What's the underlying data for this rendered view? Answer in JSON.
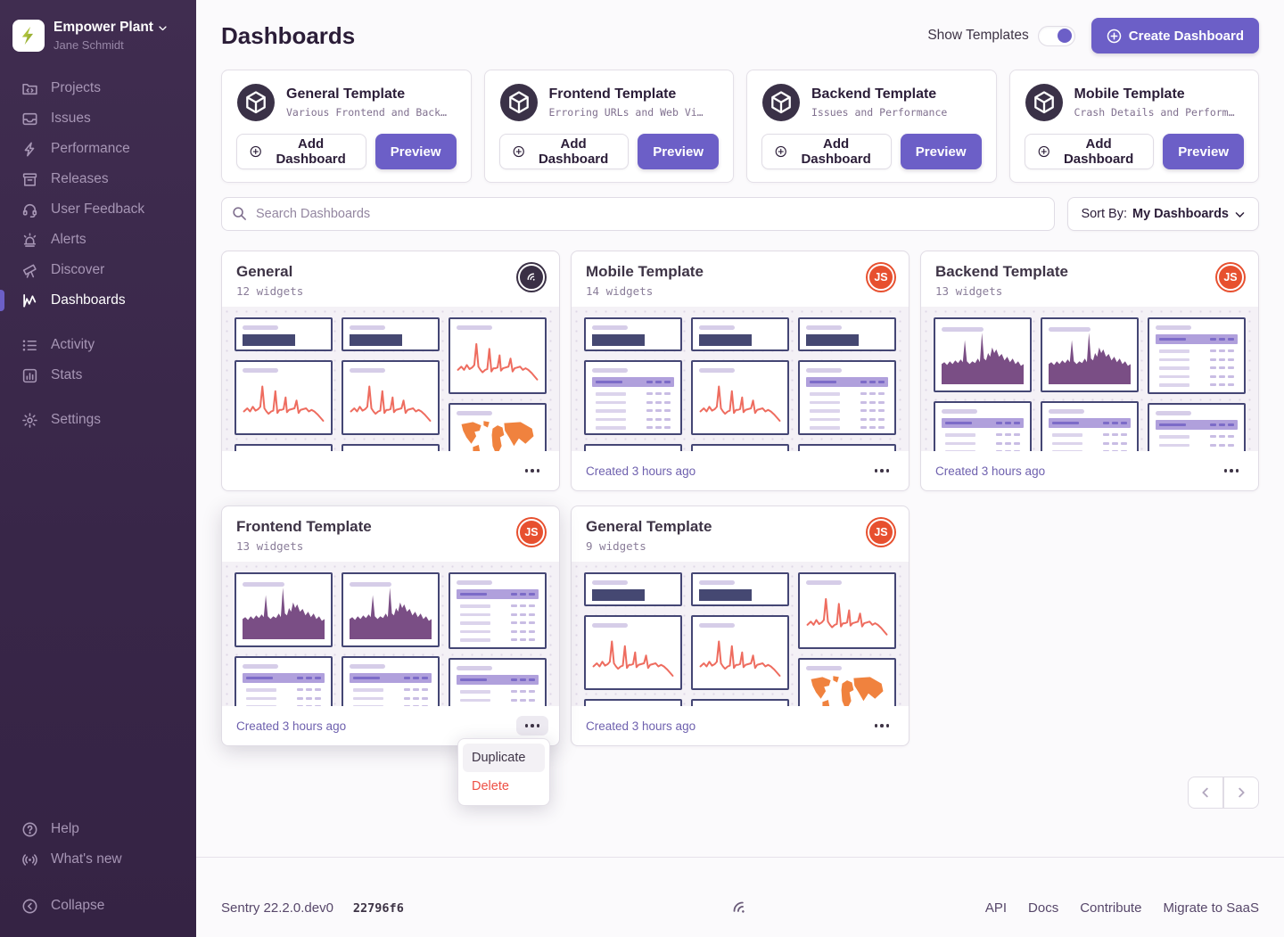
{
  "org": {
    "name": "Empower Plant",
    "user": "Jane Schmidt"
  },
  "sidebar": {
    "items": [
      {
        "id": "projects",
        "label": "Projects"
      },
      {
        "id": "issues",
        "label": "Issues"
      },
      {
        "id": "performance",
        "label": "Performance"
      },
      {
        "id": "releases",
        "label": "Releases"
      },
      {
        "id": "feedback",
        "label": "User Feedback"
      },
      {
        "id": "alerts",
        "label": "Alerts"
      },
      {
        "id": "discover",
        "label": "Discover"
      },
      {
        "id": "dashboards",
        "label": "Dashboards",
        "active": true
      },
      {
        "id": "activity",
        "label": "Activity",
        "gap": true
      },
      {
        "id": "stats",
        "label": "Stats"
      },
      {
        "id": "settings",
        "label": "Settings",
        "gap": true
      }
    ],
    "footer_items": [
      {
        "id": "help",
        "label": "Help"
      },
      {
        "id": "whats-new",
        "label": "What's new"
      }
    ],
    "collapse_label": "Collapse"
  },
  "header": {
    "title": "Dashboards",
    "show_templates_label": "Show Templates",
    "show_templates_on": true,
    "create_button_label": "Create Dashboard"
  },
  "templates": [
    {
      "title": "General Template",
      "description": "Various Frontend and Back…",
      "add_label": "Add Dashboard",
      "preview_label": "Preview"
    },
    {
      "title": "Frontend Template",
      "description": "Erroring URLs and Web Vi…",
      "add_label": "Add Dashboard",
      "preview_label": "Preview"
    },
    {
      "title": "Backend Template",
      "description": "Issues and Performance",
      "add_label": "Add Dashboard",
      "preview_label": "Preview"
    },
    {
      "title": "Mobile Template",
      "description": "Crash Details and Perform…",
      "add_label": "Add Dashboard",
      "preview_label": "Preview"
    }
  ],
  "controls": {
    "search_placeholder": "Search Dashboards",
    "sort_label": "Sort By:",
    "sort_value": "My Dashboards"
  },
  "dashboards": [
    {
      "title": "General",
      "widgets": "12 widgets",
      "avatar": "sentry",
      "created": "",
      "preview": "general",
      "menu_open": false
    },
    {
      "title": "Mobile Template",
      "widgets": "14 widgets",
      "avatar": "JS",
      "created": "Created 3 hours ago",
      "preview": "mobile",
      "menu_open": false
    },
    {
      "title": "Backend Template",
      "widgets": "13 widgets",
      "avatar": "JS",
      "created": "Created 3 hours ago",
      "preview": "tables",
      "menu_open": false
    },
    {
      "title": "Frontend Template",
      "widgets": "13 widgets",
      "avatar": "JS",
      "created": "Created 3 hours ago",
      "preview": "tables",
      "menu_open": true
    },
    {
      "title": "General Template",
      "widgets": "9 widgets",
      "avatar": "JS",
      "created": "Created 3 hours ago",
      "preview": "general",
      "menu_open": false
    }
  ],
  "preview_layouts": {
    "general": [
      [
        "bignum",
        "line",
        "sliver"
      ],
      [
        "bignum",
        "line",
        "sliver"
      ],
      [
        "line-tall",
        "map"
      ]
    ],
    "mobile": [
      [
        "bignum",
        "table",
        "sliver"
      ],
      [
        "bignum",
        "line",
        "sliver"
      ],
      [
        "bignum",
        "table",
        "sliver"
      ]
    ],
    "tables": [
      [
        "area",
        "table-cut"
      ],
      [
        "area",
        "table-cut"
      ],
      [
        "table-tall",
        "table-cut"
      ]
    ]
  },
  "context_menu": {
    "items": [
      {
        "label": "Duplicate",
        "danger": false,
        "highlighted": true
      },
      {
        "label": "Delete",
        "danger": true,
        "highlighted": false
      }
    ]
  },
  "footer": {
    "version": "Sentry 22.2.0.dev0",
    "build": "22796f6",
    "links": [
      "API",
      "Docs",
      "Contribute",
      "Migrate to SaaS"
    ]
  },
  "colors": {
    "accent": "#6C5FC7",
    "sidebar_bg": "#3D2A4E",
    "line_chart": "#EE6C5F",
    "area_chart": "#7A4E85",
    "map_orange": "#F0823E",
    "avatar_red": "#E7502F",
    "widget_border": "#444674",
    "danger": "#EE5045"
  }
}
